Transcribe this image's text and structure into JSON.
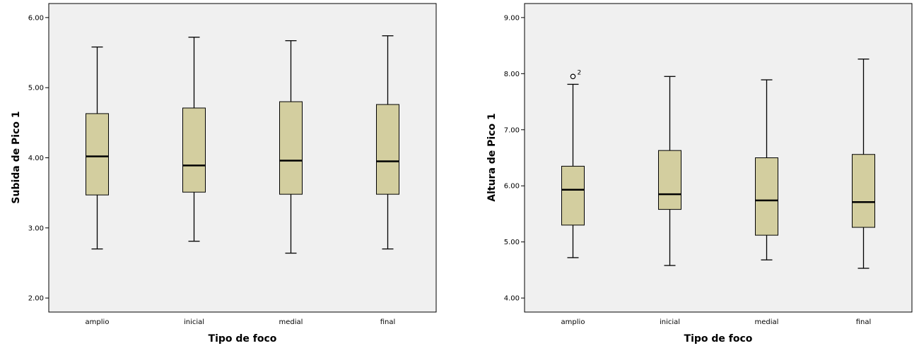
{
  "chart_data": [
    {
      "type": "boxplot",
      "xlabel": "Tipo de foco",
      "ylabel": "Subida de Pico 1",
      "ylim": [
        1.8,
        6.2
      ],
      "yticks": [
        2.0,
        3.0,
        4.0,
        5.0,
        6.0
      ],
      "ytick_labels": [
        "2.00",
        "3.00",
        "4.00",
        "5.00",
        "6.00"
      ],
      "categories": [
        "amplio",
        "inicial",
        "medial",
        "final"
      ],
      "boxes": [
        {
          "min": 2.7,
          "q1": 3.47,
          "median": 4.02,
          "q3": 4.63,
          "max": 5.58,
          "outliers": []
        },
        {
          "min": 2.81,
          "q1": 3.51,
          "median": 3.89,
          "q3": 4.71,
          "max": 5.72,
          "outliers": []
        },
        {
          "min": 2.64,
          "q1": 3.48,
          "median": 3.96,
          "q3": 4.8,
          "max": 5.67,
          "outliers": []
        },
        {
          "min": 2.7,
          "q1": 3.48,
          "median": 3.95,
          "q3": 4.76,
          "max": 5.74,
          "outliers": []
        }
      ]
    },
    {
      "type": "boxplot",
      "xlabel": "Tipo de foco",
      "ylabel": "Altura de Pico 1",
      "ylim": [
        3.75,
        9.25
      ],
      "yticks": [
        4.0,
        5.0,
        6.0,
        7.0,
        8.0,
        9.0
      ],
      "ytick_labels": [
        "4.00",
        "5.00",
        "6.00",
        "7.00",
        "8.00",
        "9.00"
      ],
      "categories": [
        "amplio",
        "inicial",
        "medial",
        "final"
      ],
      "boxes": [
        {
          "min": 4.72,
          "q1": 5.3,
          "median": 5.93,
          "q3": 6.35,
          "max": 7.81,
          "outliers": [
            {
              "value": 7.95,
              "label": "2"
            }
          ]
        },
        {
          "min": 4.58,
          "q1": 5.58,
          "median": 5.85,
          "q3": 6.63,
          "max": 7.95,
          "outliers": []
        },
        {
          "min": 4.68,
          "q1": 5.12,
          "median": 5.74,
          "q3": 6.5,
          "max": 7.89,
          "outliers": []
        },
        {
          "min": 4.53,
          "q1": 5.26,
          "median": 5.71,
          "q3": 6.56,
          "max": 8.26,
          "outliers": []
        }
      ]
    }
  ]
}
